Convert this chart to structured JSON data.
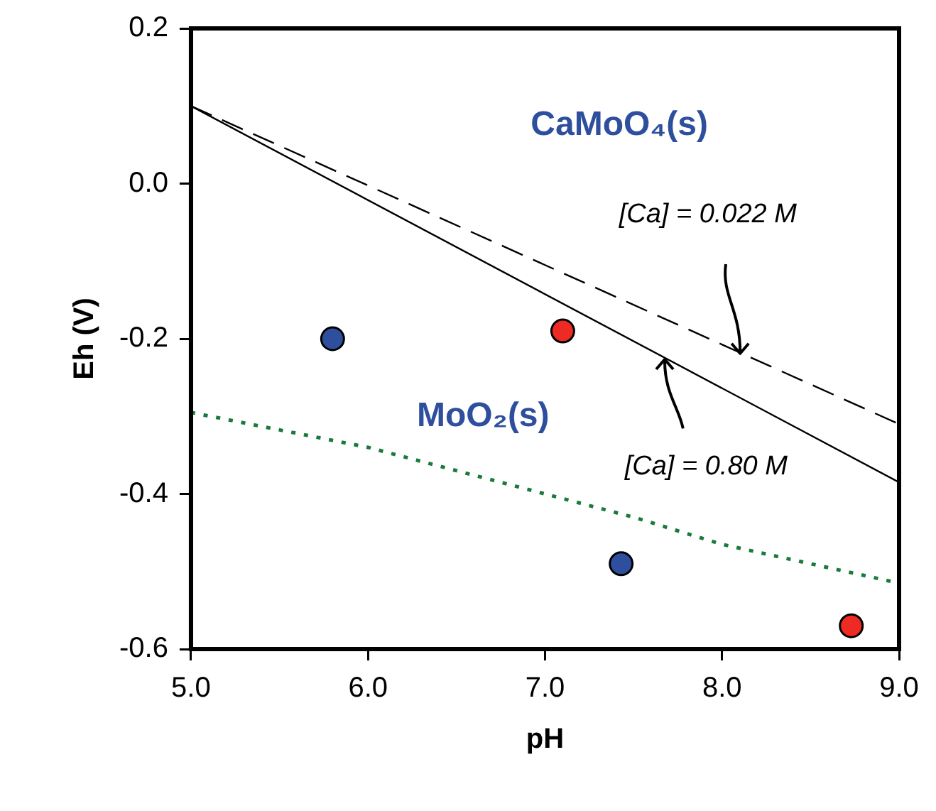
{
  "chart_data": {
    "type": "line",
    "xlabel": "pH",
    "ylabel": "Eh (V)",
    "xlim": [
      5.0,
      9.0
    ],
    "xticks": [
      {
        "value": 5,
        "label": "5.0"
      },
      {
        "value": 6,
        "label": "6.0"
      },
      {
        "value": 7,
        "label": "7.0"
      },
      {
        "value": 8,
        "label": "8.0"
      },
      {
        "value": 9,
        "label": "9.0"
      }
    ],
    "ylim": [
      -0.6,
      0.2
    ],
    "yticks": [
      -0.6,
      -0.4,
      -0.2,
      {
        "value": 0,
        "label": "0.0"
      },
      0.2
    ],
    "grid": false,
    "legend": false,
    "series": [
      {
        "color": "#000000",
        "line_style": "solid",
        "marker": "none",
        "x": [
          5.0,
          9.0
        ],
        "values": [
          0.1,
          -0.385
        ]
      },
      {
        "color": "#000000",
        "line_style": "dashed",
        "marker": "none",
        "x": [
          5.0,
          9.0
        ],
        "values": [
          0.1,
          -0.31
        ]
      },
      {
        "color": "#1a7a3a",
        "line_style": "dotted",
        "marker": "none",
        "x": [
          5.0,
          6.0,
          7.0,
          7.5,
          8.0,
          8.5,
          9.0
        ],
        "values": [
          -0.295,
          -0.34,
          -0.4,
          -0.43,
          -0.465,
          -0.49,
          -0.515
        ]
      },
      {
        "type": "scatter",
        "color": "#2e4f9e",
        "marker": "circle",
        "x": [
          5.8
        ],
        "values": [
          -0.2
        ]
      },
      {
        "type": "scatter",
        "color": "#ee2a24",
        "marker": "circle",
        "x": [
          7.1
        ],
        "values": [
          -0.19
        ]
      },
      {
        "type": "scatter",
        "color": "#2e4f9e",
        "marker": "circle",
        "x": [
          7.43
        ],
        "values": [
          -0.49
        ]
      },
      {
        "type": "scatter",
        "color": "#ee2a24",
        "marker": "circle",
        "x": [
          8.73
        ],
        "values": [
          -0.57
        ]
      }
    ],
    "annotations": [
      "CaMoO₄(s)",
      "MoO₂(s)",
      {
        "text": "[Ca] = 0.022 M",
        "x": 8.1,
        "y": -0.22
      },
      {
        "text": "[Ca] = 0.80 M",
        "x": 7.68,
        "y": -0.225
      }
    ]
  }
}
